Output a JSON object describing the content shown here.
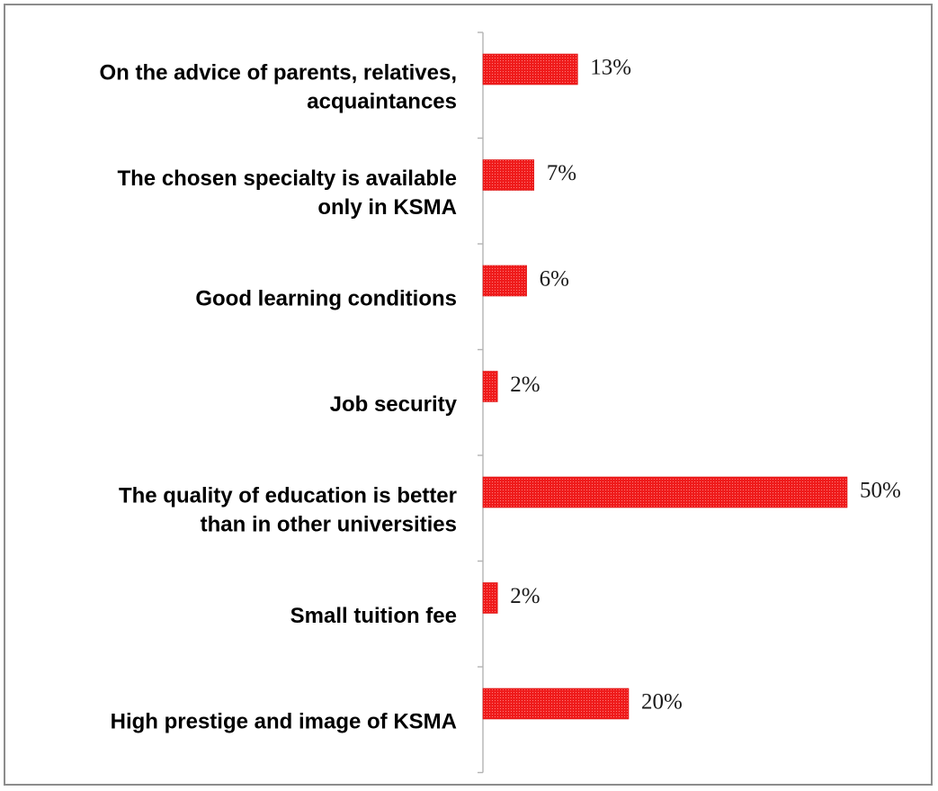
{
  "chart_data": {
    "type": "bar",
    "orientation": "horizontal",
    "categories": [
      [
        "On the advice of parents, relatives,",
        "acquaintances"
      ],
      [
        "The chosen specialty is available",
        "only in KSMA"
      ],
      [
        "Good learning conditions"
      ],
      [
        "Job security"
      ],
      [
        "The quality of education is better",
        "than in other universities"
      ],
      [
        "Small tuition fee"
      ],
      [
        "High prestige and image of KSMA"
      ]
    ],
    "values": [
      13,
      7,
      6,
      2,
      50,
      2,
      20
    ],
    "value_labels": [
      "13%",
      "7%",
      "6%",
      "2%",
      "50%",
      "2%",
      "20%"
    ],
    "xlim": [
      0,
      52
    ],
    "grid": false,
    "legend": "none",
    "bar_color": "#ee1c1c",
    "bar_pattern": "dotted"
  }
}
